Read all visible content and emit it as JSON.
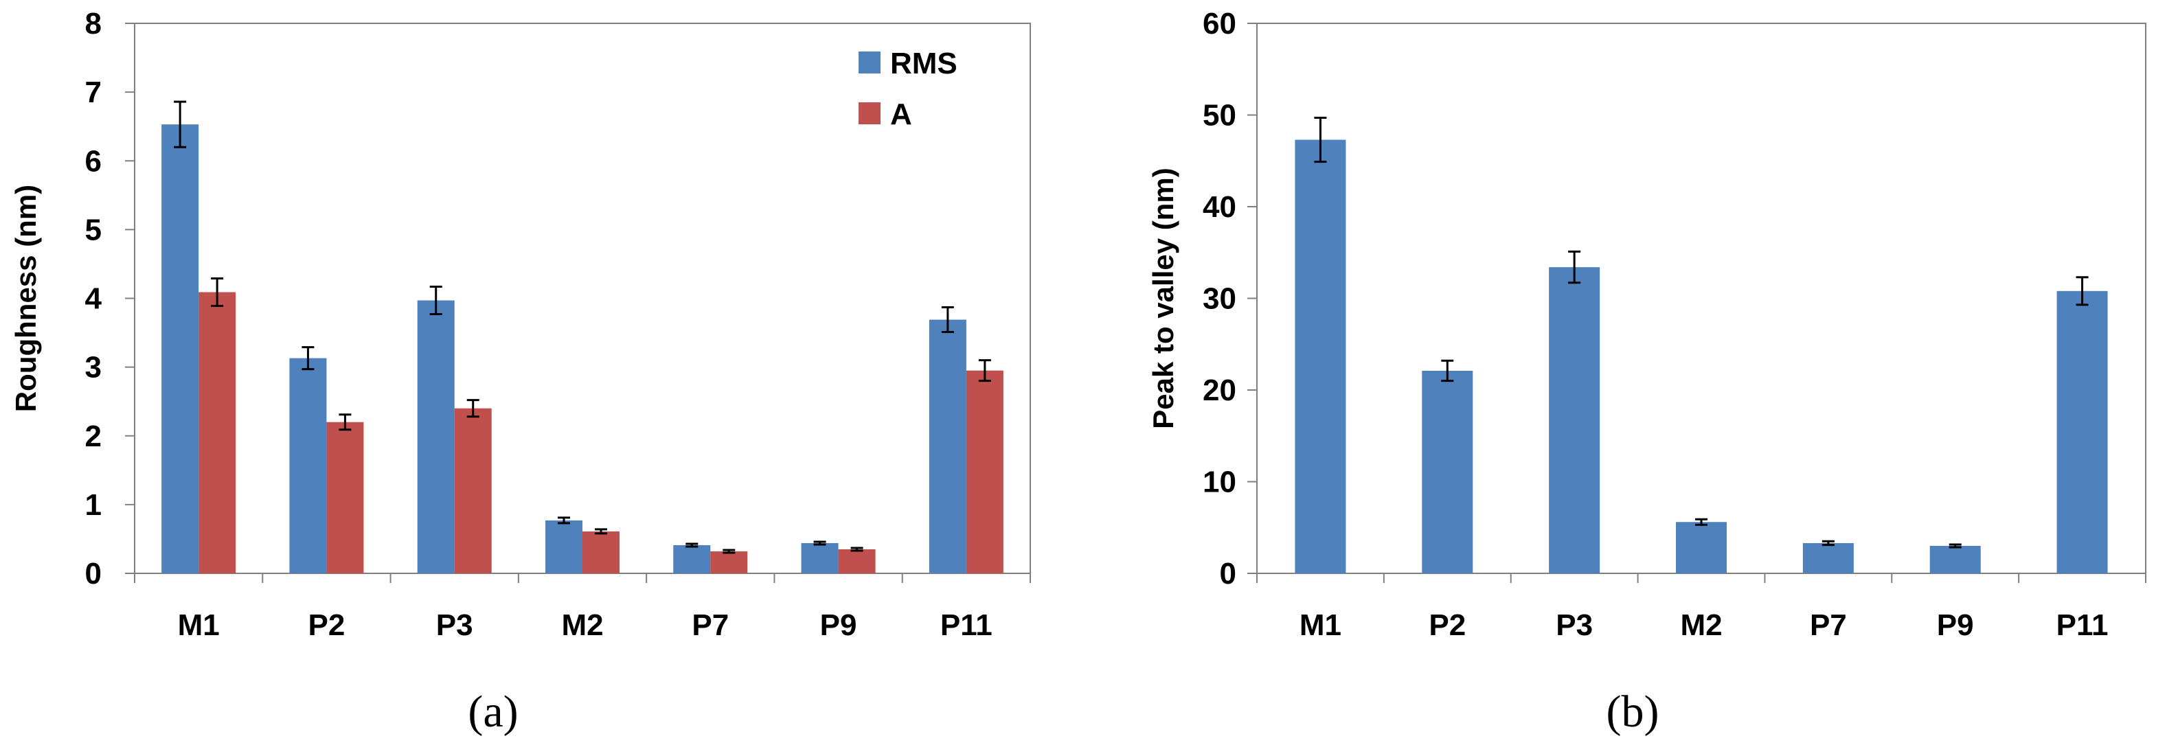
{
  "colors": {
    "blue": "#4F81BD",
    "red": "#C0504D",
    "axis": "#808080",
    "error": "#000000"
  },
  "chart_data": [
    {
      "type": "bar",
      "panel_label": "(a)",
      "title": "",
      "xlabel": "",
      "ylabel": "Roughness (nm)",
      "ylim": [
        0,
        8
      ],
      "yticks": [
        0,
        1,
        2,
        3,
        4,
        5,
        6,
        7,
        8
      ],
      "categories": [
        "M1",
        "P2",
        "P3",
        "M2",
        "P7",
        "P9",
        "P11"
      ],
      "legend_position": "top-right",
      "series": [
        {
          "name": "RMS",
          "values": [
            6.53,
            3.13,
            3.97,
            0.77,
            0.41,
            0.44,
            3.69
          ],
          "errors": [
            0.33,
            0.16,
            0.2,
            0.04,
            0.02,
            0.02,
            0.18
          ]
        },
        {
          "name": "A",
          "values": [
            4.09,
            2.2,
            2.4,
            0.61,
            0.32,
            0.35,
            2.95
          ],
          "errors": [
            0.2,
            0.11,
            0.12,
            0.03,
            0.02,
            0.02,
            0.15
          ]
        }
      ]
    },
    {
      "type": "bar",
      "panel_label": "(b)",
      "title": "",
      "xlabel": "",
      "ylabel": "Peak to valley (nm)",
      "ylim": [
        0,
        60
      ],
      "yticks": [
        0,
        10,
        20,
        30,
        40,
        50,
        60
      ],
      "categories": [
        "M1",
        "P2",
        "P3",
        "M2",
        "P7",
        "P9",
        "P11"
      ],
      "series": [
        {
          "name": "Peak to valley",
          "values": [
            47.3,
            22.1,
            33.4,
            5.6,
            3.3,
            3.0,
            30.8
          ],
          "errors": [
            2.4,
            1.1,
            1.7,
            0.3,
            0.2,
            0.15,
            1.5
          ]
        }
      ]
    }
  ]
}
